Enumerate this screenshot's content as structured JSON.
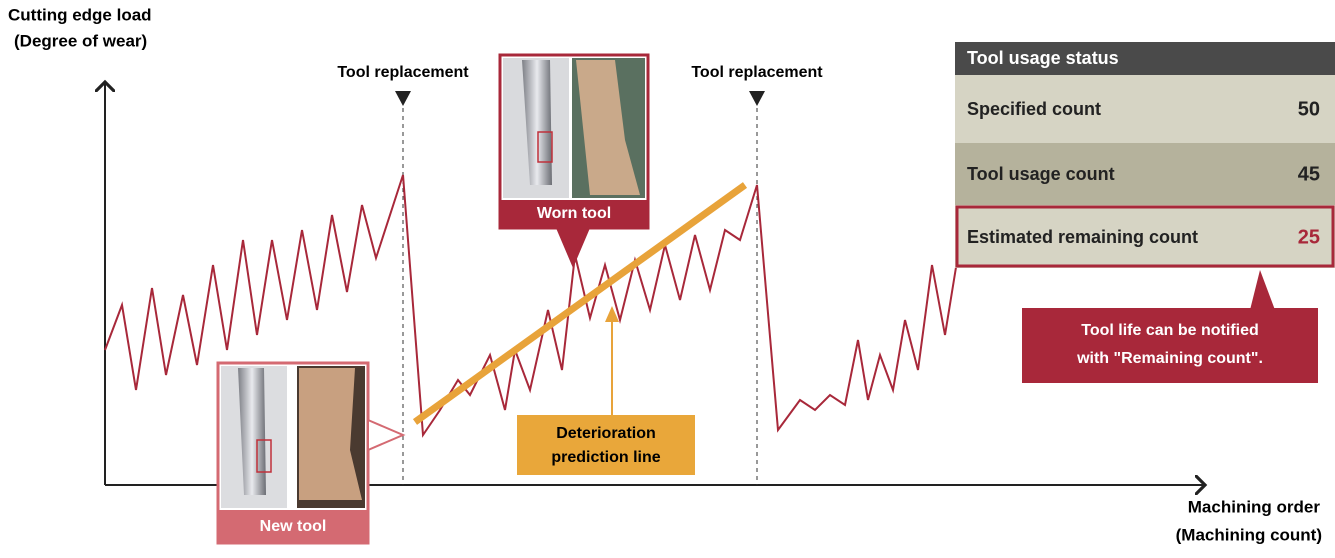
{
  "y_axis_label": [
    "Cutting edge load",
    "(Degree of wear)"
  ],
  "x_axis_label": [
    "Machining order",
    "(Machining count)"
  ],
  "replacement_labels": [
    "Tool replacement",
    "Tool replacement"
  ],
  "worn_tool_label": "Worn tool",
  "new_tool_label": "New tool",
  "prediction_label": [
    "Deterioration",
    "prediction line"
  ],
  "status_panel": {
    "title": "Tool usage status",
    "rows": [
      {
        "label": "Specified count",
        "value": "50"
      },
      {
        "label": "Tool usage count",
        "value": "45"
      },
      {
        "label": "Estimated remaining count",
        "value": "25"
      }
    ]
  },
  "callout": [
    "Tool life can be notified",
    "with \"Remaining count\"."
  ]
}
